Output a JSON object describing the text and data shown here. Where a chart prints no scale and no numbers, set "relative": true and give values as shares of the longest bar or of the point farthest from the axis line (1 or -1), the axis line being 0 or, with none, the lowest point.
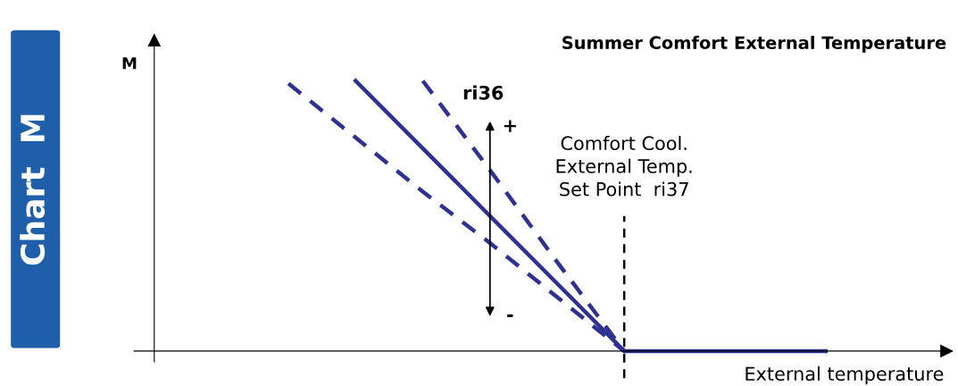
{
  "chart_data": {
    "type": "line",
    "relative": true,
    "title": "Summer Comfort External Temperature",
    "xlabel": "External temperature",
    "categories": [
      null,
      null,
      null,
      null,
      null,
      null,
      null,
      null,
      null
    ],
    "series": [
      {
        "color": "#2e3192",
        "values": [
          0.99,
          0.79,
          0.59,
          0.4,
          0.2,
          0,
          null,
          null,
          null
        ],
        "line_style": "dashed"
      },
      {
        "color": "#2e3192",
        "values": [
          null,
          1.0,
          0.75,
          0.5,
          0.25,
          0,
          0,
          0,
          0
        ],
        "line_style": "solid"
      },
      {
        "color": "#2e3192",
        "values": [
          null,
          null,
          1.0,
          0.67,
          0.33,
          0,
          null,
          null,
          null
        ],
        "line_style": "dashed"
      }
    ],
    "annotations": [
      "M",
      "Chart  M",
      "ri36",
      "+",
      "-",
      "Comfort Cool.\nExternal Temp.\nSet Point  ri37"
    ],
    "marker": "none"
  }
}
